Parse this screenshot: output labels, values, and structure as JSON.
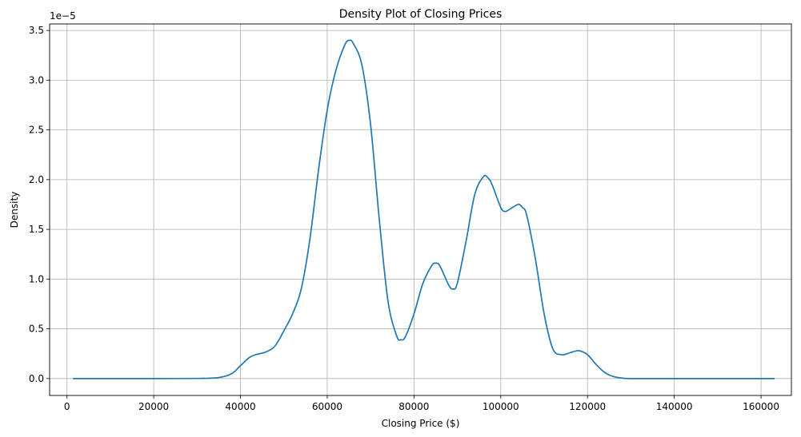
{
  "chart_data": {
    "type": "line",
    "title": "Density Plot of Closing Prices",
    "xlabel": "Closing Price ($)",
    "ylabel": "Density",
    "y_scale_label": "1e−5",
    "xlim": [
      -4000,
      167000
    ],
    "ylim": [
      -1.7e-06,
      3.565e-05
    ],
    "grid": true,
    "x_ticks": [
      0,
      20000,
      40000,
      60000,
      80000,
      100000,
      120000,
      140000,
      160000
    ],
    "x_tick_labels": [
      "0",
      "20000",
      "40000",
      "60000",
      "80000",
      "100000",
      "120000",
      "140000",
      "160000"
    ],
    "y_ticks": [
      0,
      5e-06,
      1e-05,
      1.5e-05,
      2e-05,
      2.5e-05,
      3e-05,
      3.5e-05
    ],
    "y_tick_labels": [
      "0.0",
      "0.5",
      "1.0",
      "1.5",
      "2.0",
      "2.5",
      "3.0",
      "3.5"
    ],
    "series": [
      {
        "color": "#1f77b4",
        "x": [
          1500,
          10000,
          20000,
          30000,
          35000,
          38000,
          40000,
          42000,
          43500,
          46000,
          48000,
          50000,
          52000,
          54000,
          56000,
          58000,
          60000,
          62000,
          64000,
          65000,
          66000,
          68000,
          70000,
          72000,
          74000,
          76000,
          77000,
          78000,
          80000,
          82000,
          84000,
          85000,
          86000,
          88000,
          89000,
          90000,
          92000,
          94000,
          96000,
          97000,
          98000,
          100000,
          101000,
          102000,
          104000,
          105000,
          106000,
          108000,
          110000,
          112000,
          114000,
          116000,
          118000,
          120000,
          122000,
          124000,
          126000,
          128000,
          130000,
          140000,
          150000,
          163000
        ],
        "y": [
          0,
          0,
          0,
          1e-08,
          1e-07,
          5e-07,
          1.3e-06,
          2.1e-06,
          2.4e-06,
          2.7e-06,
          3.3e-06,
          4.8e-06,
          6.5e-06,
          9e-06,
          1.4e-05,
          2.1e-05,
          2.7e-05,
          3.1e-05,
          3.35e-05,
          3.4e-05,
          3.37e-05,
          3.15e-05,
          2.55e-05,
          1.6e-05,
          7.8e-06,
          4.3e-06,
          3.9e-06,
          4.2e-06,
          6.5e-06,
          9.5e-06,
          1.13e-05,
          1.16e-05,
          1.13e-05,
          9.4e-06,
          9e-06,
          9.6e-06,
          1.38e-05,
          1.85e-05,
          2.03e-05,
          2.02e-05,
          1.95e-05,
          1.72e-05,
          1.68e-05,
          1.7e-05,
          1.75e-05,
          1.72e-05,
          1.64e-05,
          1.2e-05,
          6.5e-06,
          3e-06,
          2.4e-06,
          2.6e-06,
          2.8e-06,
          2.4e-06,
          1.4e-06,
          6e-07,
          2e-07,
          5e-08,
          0,
          0,
          0,
          0
        ]
      }
    ]
  }
}
